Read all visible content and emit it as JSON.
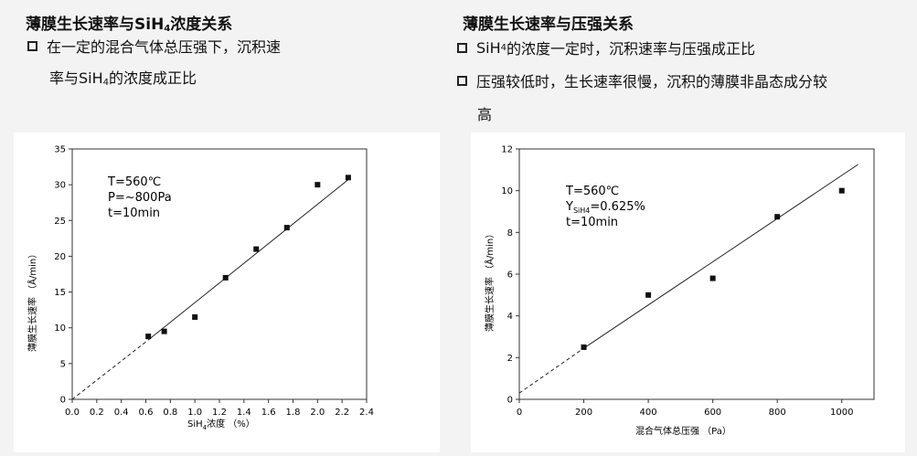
{
  "left": {
    "title_pre": "薄膜生长速率与SiH",
    "title_sub": "4",
    "title_post": "浓度关系",
    "bullet1_line1": "在一定的混合气体总压强下，沉积速",
    "bullet1_line2_pre": "率与SiH",
    "bullet1_line2_sub": "4",
    "bullet1_line2_post": "的浓度成正比"
  },
  "right": {
    "title": "薄膜生长速率与压强关系",
    "bullet1_pre": "SiH",
    "bullet1_sub": "4",
    "bullet1_post": "的浓度一定时，沉积速率与压强成正比",
    "bullet2_line1": "压强较低时，生长速率很慢，沉积的薄膜非晶态成分较",
    "bullet2_line2": "高"
  },
  "chart_data": [
    {
      "type": "scatter",
      "ylabel": "薄膜生长速率 （Å/min）",
      "xlabel_pre": "SiH",
      "xlabel_sub": "4",
      "xlabel_post": "浓度 （%）",
      "xlim": [
        0,
        2.4
      ],
      "ylim": [
        0,
        35
      ],
      "xticks": [
        0.0,
        0.2,
        0.4,
        0.6,
        0.8,
        1.0,
        1.2,
        1.4,
        1.6,
        1.8,
        2.0,
        2.2,
        2.4
      ],
      "xtick_labels": [
        "0.0",
        "0.2",
        "0.4",
        "0.6",
        "0.8",
        "1.0",
        "1.2",
        "1.4",
        "1.6",
        "1.8",
        "2.0",
        "2.2",
        "2.4"
      ],
      "yticks": [
        0,
        5,
        10,
        15,
        20,
        25,
        30,
        35
      ],
      "ytick_labels": [
        "0",
        "5",
        "10",
        "15",
        "20",
        "25",
        "30",
        "35"
      ],
      "points": [
        [
          0.62,
          8.8
        ],
        [
          0.75,
          9.5
        ],
        [
          1.0,
          11.5
        ],
        [
          1.25,
          17
        ],
        [
          1.5,
          21
        ],
        [
          1.75,
          24
        ],
        [
          2.0,
          30
        ],
        [
          2.25,
          31
        ]
      ],
      "fit_line": [
        [
          0.62,
          8.3
        ],
        [
          2.25,
          30.7
        ]
      ],
      "dashed_line": [
        [
          0.0,
          0.0
        ],
        [
          0.62,
          8.3
        ]
      ],
      "annotations": [
        "T=560℃",
        "P=~800Pa",
        "t=10min"
      ]
    },
    {
      "type": "scatter",
      "ylabel": "薄膜生长速率 （Å/min）",
      "xlabel": "混合气体总压强 （Pa）",
      "xlim": [
        0,
        1100
      ],
      "ylim": [
        0,
        12
      ],
      "xticks": [
        0,
        200,
        400,
        600,
        800,
        1000
      ],
      "xtick_labels": [
        "0",
        "200",
        "400",
        "600",
        "800",
        "1000"
      ],
      "yticks": [
        0,
        2,
        4,
        6,
        8,
        10,
        12
      ],
      "ytick_labels": [
        "0",
        "2",
        "4",
        "6",
        "8",
        "10",
        "12"
      ],
      "points": [
        [
          200,
          2.5
        ],
        [
          400,
          5.0
        ],
        [
          600,
          5.8
        ],
        [
          800,
          8.75
        ],
        [
          1000,
          10.0
        ]
      ],
      "fit_line": [
        [
          200,
          2.45
        ],
        [
          1050,
          11.25
        ]
      ],
      "dashed_line": [
        [
          0,
          0.3
        ],
        [
          200,
          2.45
        ]
      ],
      "annotations": [
        "T=560℃",
        "Y",
        "SiH4",
        "=0.625%",
        "t=10min"
      ]
    }
  ]
}
